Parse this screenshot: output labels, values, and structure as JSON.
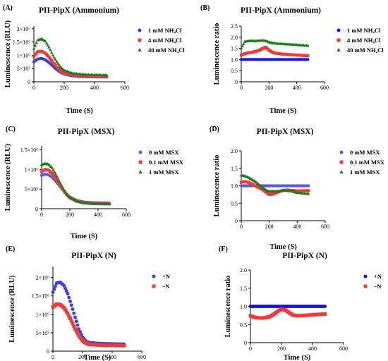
{
  "chart_data": [
    {
      "panel": "(A)",
      "type": "scatter",
      "title": "PII-PipX (Ammonium)",
      "xlabel": "Time (S)",
      "ylabel": "Luminescence (RLU)",
      "xlim": [
        0,
        600
      ],
      "ylim": [
        0,
        2100000
      ],
      "x_ticks": [
        0,
        200,
        400,
        600
      ],
      "x_tick_labels": [
        "0",
        "200",
        "400",
        "600"
      ],
      "y_ticks": [
        0,
        500000,
        1000000,
        1500000,
        2000000
      ],
      "y_tick_labels": [
        "0",
        "5×10⁵",
        "1×10⁶",
        "1.5×10⁶",
        "2×10⁶"
      ],
      "legend_position": "right",
      "series": [
        {
          "name": "1 mM NH₄Cl",
          "marker": "circle",
          "color": "#3b3bdc",
          "x": [
            0,
            25,
            50,
            75,
            100,
            125,
            150,
            175,
            200,
            250,
            300,
            350,
            400,
            450,
            480
          ],
          "y": [
            750000,
            860000,
            880000,
            830000,
            720000,
            590000,
            460000,
            360000,
            290000,
            230000,
            200000,
            190000,
            185000,
            180000,
            178000
          ]
        },
        {
          "name": "4 mM NH₄Cl",
          "marker": "square",
          "color": "#ee3b3b",
          "x": [
            0,
            25,
            50,
            75,
            100,
            125,
            150,
            175,
            200,
            250,
            300,
            350,
            400,
            450,
            480
          ],
          "y": [
            960000,
            1130000,
            1150000,
            1080000,
            930000,
            730000,
            560000,
            420000,
            330000,
            260000,
            230000,
            215000,
            205000,
            200000,
            198000
          ]
        },
        {
          "name": "40 mM NH₄Cl",
          "marker": "triangle",
          "color": "#1e7a1e",
          "x": [
            0,
            25,
            50,
            75,
            100,
            125,
            150,
            175,
            200,
            250,
            300,
            350,
            400,
            450,
            480
          ],
          "y": [
            1250000,
            1570000,
            1620000,
            1530000,
            1300000,
            1000000,
            760000,
            560000,
            430000,
            330000,
            290000,
            270000,
            260000,
            255000,
            250000
          ]
        }
      ]
    },
    {
      "panel": "(B)",
      "type": "scatter",
      "title": "PII-PipX (Ammonium)",
      "xlabel": "Time (S)",
      "ylabel": "Luminescence ratio",
      "xlim": [
        0,
        600
      ],
      "ylim": [
        0,
        2.5
      ],
      "x_ticks": [
        0,
        200,
        400,
        600
      ],
      "x_tick_labels": [
        "0",
        "200",
        "400",
        "600"
      ],
      "y_ticks": [
        0,
        0.5,
        1.0,
        1.5,
        2.0,
        2.5
      ],
      "y_tick_labels": [
        "0",
        "0.5",
        "1.0",
        "1.5",
        "2.0",
        "2.5"
      ],
      "legend_position": "right",
      "series": [
        {
          "name": "1 mM NH₄Cl",
          "marker": "circle",
          "color": "#1a1adc",
          "x": [
            0,
            60,
            120,
            180,
            240,
            300,
            360,
            420,
            480
          ],
          "y": [
            1,
            1,
            1,
            1,
            1,
            1,
            1,
            1,
            1
          ]
        },
        {
          "name": "4 mM NH₄Cl",
          "marker": "square",
          "color": "#ee3b3b",
          "x": [
            0,
            25,
            50,
            75,
            100,
            125,
            150,
            175,
            200,
            225,
            250,
            300,
            350,
            400,
            450,
            480
          ],
          "y": [
            1.2,
            1.26,
            1.3,
            1.32,
            1.36,
            1.4,
            1.48,
            1.55,
            1.42,
            1.32,
            1.28,
            1.24,
            1.22,
            1.2,
            1.18,
            1.17
          ]
        },
        {
          "name": "40 mM NH₄Cl",
          "marker": "triangle",
          "color": "#1e7a1e",
          "x": [
            0,
            25,
            50,
            75,
            100,
            125,
            150,
            175,
            200,
            225,
            250,
            300,
            350,
            400,
            450,
            480
          ],
          "y": [
            1.5,
            1.8,
            1.83,
            1.84,
            1.83,
            1.84,
            1.85,
            1.84,
            1.78,
            1.74,
            1.72,
            1.7,
            1.68,
            1.66,
            1.63,
            1.62
          ]
        }
      ]
    },
    {
      "panel": "(C)",
      "type": "scatter",
      "title": "PII-PipX (MSX)",
      "xlabel": "Time (S)",
      "ylabel": "Luminescence (RLU)",
      "xlim": [
        0,
        600
      ],
      "ylim": [
        0,
        1600000
      ],
      "x_ticks": [
        0,
        200,
        400,
        600
      ],
      "x_tick_labels": [
        "0",
        "200",
        "400",
        "600"
      ],
      "y_ticks": [
        0,
        500000,
        1000000,
        1500000
      ],
      "y_tick_labels": [
        "0",
        "5×10⁵",
        "1×10⁶",
        "1.5×10⁶"
      ],
      "legend_position": "right",
      "series": [
        {
          "name": "0 mM MSX",
          "marker": "circle",
          "color": "#5a5ae0",
          "x": [
            0,
            25,
            50,
            75,
            100,
            125,
            150,
            175,
            200,
            250,
            300,
            350,
            400,
            450,
            480
          ],
          "y": [
            850000,
            880000,
            860000,
            800000,
            700000,
            590000,
            480000,
            380000,
            300000,
            210000,
            170000,
            155000,
            150000,
            148000,
            147000
          ]
        },
        {
          "name": "0.1 mM MSX",
          "marker": "square",
          "color": "#ee3b3b",
          "x": [
            0,
            25,
            50,
            75,
            100,
            125,
            150,
            175,
            200,
            250,
            300,
            350,
            400,
            450,
            480
          ],
          "y": [
            940000,
            1000000,
            980000,
            900000,
            770000,
            630000,
            490000,
            370000,
            280000,
            190000,
            150000,
            135000,
            130000,
            128000,
            127000
          ]
        },
        {
          "name": "1 mM MSX",
          "marker": "triangle",
          "color": "#1e7a1e",
          "x": [
            0,
            25,
            50,
            75,
            100,
            125,
            150,
            175,
            200,
            250,
            300,
            350,
            400,
            450,
            480
          ],
          "y": [
            1120000,
            1150000,
            1130000,
            1040000,
            880000,
            700000,
            530000,
            390000,
            290000,
            190000,
            145000,
            128000,
            120000,
            117000,
            115000
          ]
        }
      ]
    },
    {
      "panel": "(D)",
      "type": "scatter",
      "title": "PII-PipX (MSX)",
      "xlabel": "Time (S)",
      "ylabel": "Luminescence ratio",
      "xlim": [
        0,
        600
      ],
      "ylim": [
        0,
        2.0
      ],
      "x_ticks": [
        0,
        200,
        400,
        600
      ],
      "x_tick_labels": [
        "0",
        "200",
        "400",
        "600"
      ],
      "y_ticks": [
        0,
        0.5,
        1.0,
        1.5,
        2.0
      ],
      "y_tick_labels": [
        "0",
        "0.5",
        "1.0",
        "1.5",
        "2.0"
      ],
      "legend_position": "right",
      "series": [
        {
          "name": "0 mM MSX",
          "marker": "circle",
          "color": "#5a5ae0",
          "x": [
            0,
            60,
            120,
            180,
            240,
            300,
            360,
            420,
            480
          ],
          "y": [
            1,
            1,
            1,
            1,
            1,
            1,
            1,
            1,
            1
          ]
        },
        {
          "name": "0.1 mM MSX",
          "marker": "square",
          "color": "#ee3b3b",
          "x": [
            0,
            25,
            50,
            75,
            100,
            125,
            150,
            175,
            200,
            225,
            250,
            275,
            300,
            325,
            350,
            375,
            400,
            450,
            480
          ],
          "y": [
            1.1,
            1.12,
            1.1,
            1.05,
            1.0,
            0.95,
            0.9,
            0.82,
            0.75,
            0.76,
            0.8,
            0.84,
            0.87,
            0.88,
            0.87,
            0.86,
            0.85,
            0.86,
            0.86
          ]
        },
        {
          "name": "1 mM MSX",
          "marker": "triangle",
          "color": "#1e7a1e",
          "x": [
            0,
            25,
            50,
            75,
            100,
            125,
            150,
            175,
            200,
            225,
            250,
            275,
            300,
            325,
            350,
            375,
            400,
            450,
            480
          ],
          "y": [
            1.3,
            1.28,
            1.24,
            1.18,
            1.12,
            1.04,
            0.96,
            0.88,
            0.84,
            0.84,
            0.84,
            0.85,
            0.86,
            0.86,
            0.85,
            0.83,
            0.8,
            0.78,
            0.77
          ]
        }
      ]
    },
    {
      "panel": "(E)",
      "type": "scatter",
      "title": "PII-PipX (N)",
      "xlabel": "Time (S)",
      "ylabel": "Luminescence (RLU)",
      "xlim": [
        0,
        600
      ],
      "ylim": [
        0,
        2300000
      ],
      "x_ticks": [
        0,
        200,
        400,
        600
      ],
      "x_tick_labels": [
        "0",
        "200",
        "400",
        "600"
      ],
      "y_ticks": [
        0,
        500000,
        1000000,
        1500000,
        2000000
      ],
      "y_tick_labels": [
        "0",
        "5×10⁵",
        "1×10⁶",
        "1.5×10⁶",
        "2×10⁶"
      ],
      "legend_position": "right",
      "series": [
        {
          "name": "+N",
          "marker": "circle",
          "color": "#4040e0",
          "x": [
            0,
            25,
            50,
            75,
            100,
            125,
            150,
            175,
            200,
            225,
            250,
            300,
            350,
            400,
            450,
            480
          ],
          "y": [
            1600000,
            1850000,
            1870000,
            1780000,
            1560000,
            1250000,
            920000,
            600000,
            380000,
            260000,
            230000,
            210000,
            200000,
            195000,
            190000,
            188000
          ]
        },
        {
          "name": "–N",
          "marker": "square",
          "color": "#ee3b3b",
          "x": [
            0,
            25,
            50,
            75,
            100,
            125,
            150,
            175,
            200,
            225,
            250,
            300,
            350,
            400,
            450,
            480
          ],
          "y": [
            1200000,
            1280000,
            1260000,
            1180000,
            1020000,
            820000,
            600000,
            420000,
            280000,
            210000,
            180000,
            165000,
            158000,
            155000,
            152000,
            150000
          ]
        }
      ]
    },
    {
      "panel": "(F)",
      "type": "scatter",
      "title": "PII-PipX (N)",
      "xlabel": "Time (S)",
      "ylabel": "Luminescence ratio",
      "xlim": [
        0,
        600
      ],
      "ylim": [
        0,
        2.0
      ],
      "x_ticks": [
        0,
        200,
        400,
        600
      ],
      "x_tick_labels": [
        "0",
        "200",
        "400",
        "600"
      ],
      "y_ticks": [
        0,
        0.5,
        1.0,
        1.5,
        2.0
      ],
      "y_tick_labels": [
        "0",
        "0.5",
        "1.0",
        "1.5",
        "2.0"
      ],
      "legend_position": "right",
      "series": [
        {
          "name": "+N",
          "marker": "circle",
          "color": "#1414d8",
          "x": [
            0,
            40,
            80,
            120,
            160,
            200,
            240,
            280,
            320,
            360,
            400,
            440,
            480
          ],
          "y": [
            1,
            1,
            1,
            1,
            1,
            1,
            1,
            1,
            1,
            1,
            1,
            1,
            1
          ]
        },
        {
          "name": "–N",
          "marker": "square",
          "color": "#ee3b3b",
          "x": [
            0,
            25,
            50,
            75,
            100,
            125,
            150,
            175,
            200,
            225,
            250,
            275,
            300,
            350,
            400,
            450,
            480
          ],
          "y": [
            0.74,
            0.7,
            0.68,
            0.68,
            0.69,
            0.72,
            0.78,
            0.86,
            0.92,
            0.9,
            0.82,
            0.76,
            0.74,
            0.75,
            0.77,
            0.78,
            0.79
          ]
        }
      ]
    }
  ]
}
